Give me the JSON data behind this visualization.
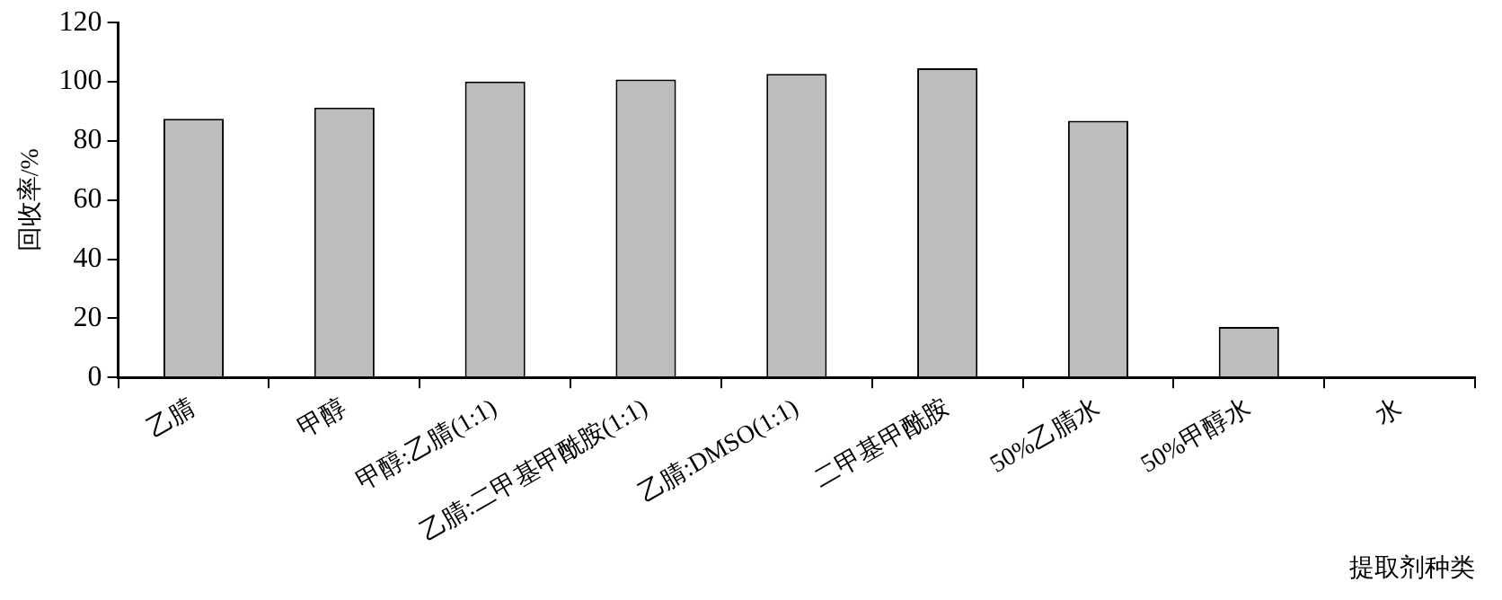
{
  "chart_data": {
    "type": "bar",
    "xlabel": "提取剂种类",
    "ylabel": "回收率/%",
    "categories": [
      "乙腈",
      "甲醇",
      "甲醇:乙腈(1:1)",
      "乙腈:二甲基甲酰胺(1:1)",
      "乙腈:DMSO(1:1)",
      "二甲基甲酰胺",
      "50%乙腈水",
      "50%甲醇水",
      "水"
    ],
    "values": [
      87.5,
      91.3,
      100.1,
      100.8,
      102.7,
      104.6,
      86.8,
      17.1,
      0
    ],
    "color": "#bdbdbd",
    "ylim": [
      0,
      120
    ],
    "yticks": [
      0,
      20,
      40,
      60,
      80,
      100,
      120
    ],
    "grid": false,
    "legend": false
  }
}
